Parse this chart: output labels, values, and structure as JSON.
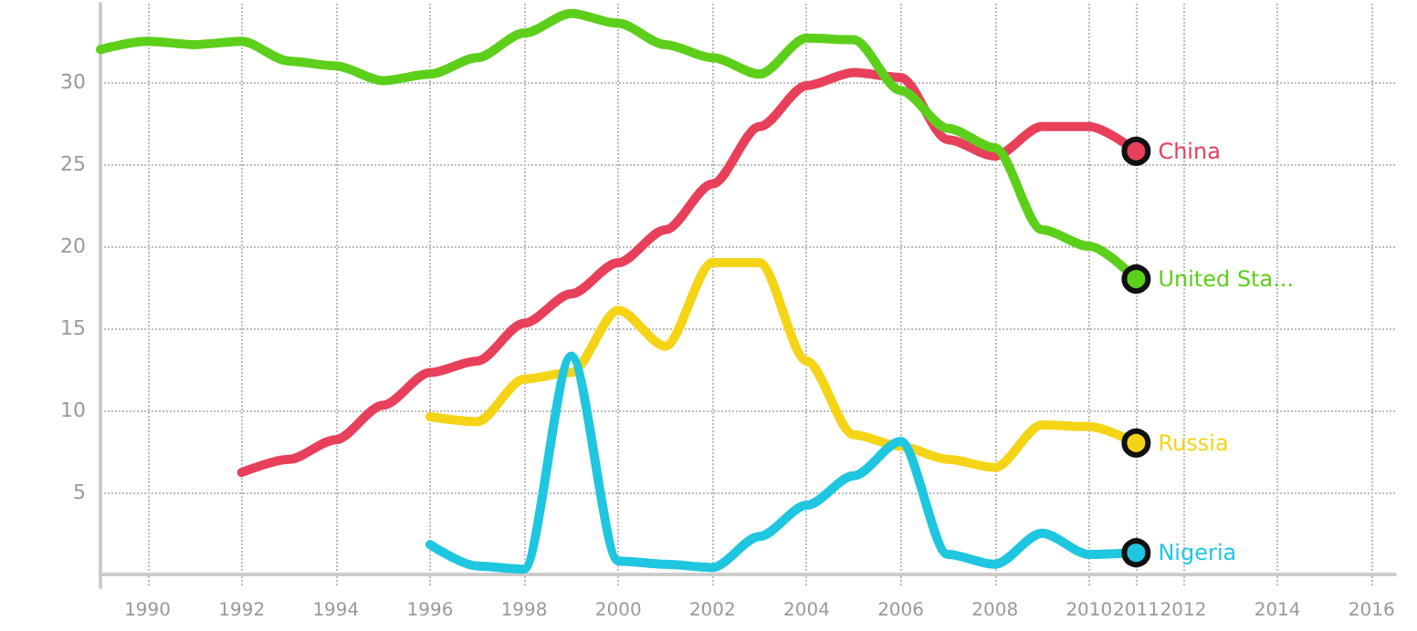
{
  "chart_data": {
    "type": "line",
    "xlim": [
      1989,
      2016.5
    ],
    "ylim": [
      -0.8,
      34.8
    ],
    "xticks": [
      1990,
      1992,
      1994,
      1996,
      1998,
      2000,
      2002,
      2004,
      2006,
      2008,
      2010,
      2011,
      2012,
      2014,
      2016
    ],
    "yticks": [
      5,
      10,
      15,
      20,
      25,
      30
    ],
    "grid": true,
    "legend": false,
    "line_style": "solid",
    "series": [
      {
        "name": "China",
        "color": "#e8405a",
        "x": [
          1992,
          1993,
          1994,
          1995,
          1996,
          1997,
          1998,
          1999,
          2000,
          2001,
          2002,
          2003,
          2004,
          2005,
          2006,
          2007,
          2008,
          2009,
          2010,
          2011
        ],
        "values": [
          6.2,
          7,
          8.2,
          10.3,
          12.3,
          13,
          15.3,
          17.1,
          19,
          21,
          23.8,
          27.3,
          29.8,
          30.6,
          30.3,
          26.5,
          25.5,
          27.3,
          27.3,
          25.8
        ]
      },
      {
        "name": "United Sta...",
        "color": "#5ccf1a",
        "x": [
          1989,
          1990,
          1991,
          1992,
          1993,
          1994,
          1995,
          1996,
          1997,
          1998,
          1999,
          2000,
          2001,
          2002,
          2003,
          2004,
          2005,
          2006,
          2007,
          2008,
          2009,
          2010,
          2011
        ],
        "values": [
          32,
          32.5,
          32.3,
          32.5,
          31.3,
          31,
          30.1,
          30.5,
          31.5,
          33,
          34.2,
          33.6,
          32.3,
          31.5,
          30.5,
          32.7,
          32.6,
          29.5,
          27.2,
          26,
          21,
          20,
          18
        ]
      },
      {
        "name": "Russia",
        "color": "#f5d416",
        "x": [
          1996,
          1997,
          1998,
          1999,
          2000,
          2001,
          2002,
          2003,
          2004,
          2005,
          2006,
          2007,
          2008,
          2009,
          2010,
          2011
        ],
        "values": [
          9.6,
          9.3,
          11.9,
          12.3,
          16.1,
          13.9,
          19,
          19,
          13,
          8.5,
          7.8,
          7,
          6.5,
          9.1,
          9,
          8
        ]
      },
      {
        "name": "Nigeria",
        "color": "#1fc6e0",
        "x": [
          1996,
          1997,
          1998,
          1999,
          2000,
          2001,
          2002,
          2003,
          2004,
          2005,
          2006,
          2007,
          2008,
          2009,
          2010,
          2011
        ],
        "values": [
          1.8,
          0.5,
          0.3,
          13.3,
          0.8,
          0.6,
          0.4,
          2.3,
          4.2,
          6,
          8.1,
          1.2,
          0.6,
          2.5,
          1.2,
          1.3
        ]
      }
    ]
  }
}
